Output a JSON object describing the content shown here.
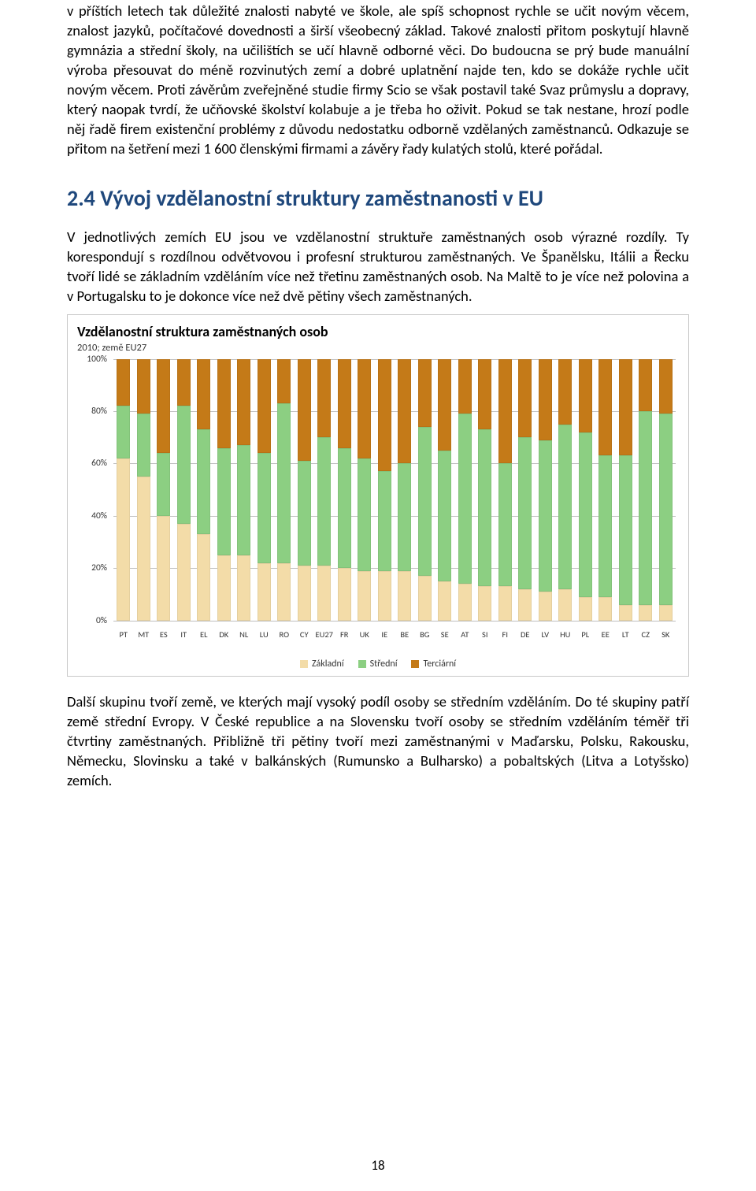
{
  "paragraphs": {
    "p1": "v příštích letech tak důležité znalosti nabyté ve škole, ale spíš schopnost rychle se učit novým věcem, znalost jazyků, počítačové dovednosti a širší všeobecný základ. Takové znalosti přitom poskytují hlavně gymnázia a střední školy, na učilištích se učí hlavně odborné věci. Do budoucna se prý bude manuální výroba přesouvat do méně rozvinutých zemí a dobré uplatnění najde ten, kdo se dokáže rychle učit novým věcem. Proti závěrům zveřejněné studie firmy Scio se však postavil také Svaz průmyslu a dopravy, který naopak tvrdí, že učňovské školství kolabuje a je třeba ho oživit. Pokud se tak nestane, hrozí podle něj řadě firem existenční problémy z důvodu nedostatku odborně vzdělaných zaměstnanců. Odkazuje se přitom na šetření mezi 1 600 členskými firmami a závěry řady kulatých stolů, které pořádal.",
    "p2": "V jednotlivých zemích EU jsou ve vzdělanostní struktuře zaměstnaných osob výrazné rozdíly. Ty korespondují s rozdílnou odvětvovou i profesní strukturou zaměstnaných. Ve Španělsku, Itálii a Řecku tvoří lidé se základním vzděláním více než třetinu zaměstnaných osob. Na Maltě to je více než polovina a v Portugalsku to je dokonce více než dvě pětiny všech zaměstnaných.",
    "p3": "Další skupinu tvoří země, ve kterých mají vysoký podíl osoby se středním vzděláním. Do té skupiny patří země střední Evropy. V České republice a na Slovensku tvoří osoby se středním vzděláním téměř tři čtvrtiny zaměstnaných. Přibližně tři pětiny tvoří mezi zaměstnanými v Maďarsku, Polsku, Rakousku, Německu, Slovinsku a také v balkánských (Rumunsko a Bulharsko) a pobaltských (Litva a Lotyšsko) zemích."
  },
  "heading": "2.4 Vývoj vzdělanostní struktury zaměstnanosti v EU",
  "page_number": "18",
  "chart": {
    "title": "Vzdělanostní struktura zaměstnaných osob",
    "subtitle": "2010; země EU27",
    "type": "stacked-bar",
    "ylim": [
      0,
      100
    ],
    "ytick_step": 20,
    "y_tick_labels": [
      "0%",
      "20%",
      "40%",
      "60%",
      "80%",
      "100%"
    ],
    "grid_color": "#bfbfbf",
    "background_color": "#ffffff",
    "series_colors": {
      "zakladni": "#f3dca8",
      "stredni": "#8ccf82",
      "terciarni": "#c47a18"
    },
    "legend": [
      {
        "key": "zakladni",
        "label": "Základní"
      },
      {
        "key": "stredni",
        "label": "Střední"
      },
      {
        "key": "terciarni",
        "label": "Terciární"
      }
    ],
    "categories": [
      "PT",
      "MT",
      "ES",
      "IT",
      "EL",
      "DK",
      "NL",
      "LU",
      "RO",
      "CY",
      "EU27",
      "FR",
      "UK",
      "IE",
      "BE",
      "BG",
      "SE",
      "AT",
      "SI",
      "FI",
      "DE",
      "LV",
      "HU",
      "PL",
      "EE",
      "LT",
      "CZ",
      "SK"
    ],
    "data": [
      {
        "zakladni": 62,
        "stredni": 20,
        "terciarni": 18
      },
      {
        "zakladni": 55,
        "stredni": 24,
        "terciarni": 21
      },
      {
        "zakladni": 40,
        "stredni": 24,
        "terciarni": 36
      },
      {
        "zakladni": 37,
        "stredni": 45,
        "terciarni": 18
      },
      {
        "zakladni": 33,
        "stredni": 40,
        "terciarni": 27
      },
      {
        "zakladni": 25,
        "stredni": 41,
        "terciarni": 34
      },
      {
        "zakladni": 25,
        "stredni": 42,
        "terciarni": 33
      },
      {
        "zakladni": 22,
        "stredni": 42,
        "terciarni": 36
      },
      {
        "zakladni": 22,
        "stredni": 61,
        "terciarni": 17
      },
      {
        "zakladni": 21,
        "stredni": 40,
        "terciarni": 39
      },
      {
        "zakladni": 21,
        "stredni": 49,
        "terciarni": 30
      },
      {
        "zakladni": 20,
        "stredni": 46,
        "terciarni": 34
      },
      {
        "zakladni": 19,
        "stredni": 43,
        "terciarni": 38
      },
      {
        "zakladni": 19,
        "stredni": 38,
        "terciarni": 43
      },
      {
        "zakladni": 19,
        "stredni": 41,
        "terciarni": 40
      },
      {
        "zakladni": 17,
        "stredni": 57,
        "terciarni": 26
      },
      {
        "zakladni": 15,
        "stredni": 50,
        "terciarni": 35
      },
      {
        "zakladni": 14,
        "stredni": 65,
        "terciarni": 21
      },
      {
        "zakladni": 13,
        "stredni": 60,
        "terciarni": 27
      },
      {
        "zakladni": 13,
        "stredni": 47,
        "terciarni": 40
      },
      {
        "zakladni": 12,
        "stredni": 58,
        "terciarni": 30
      },
      {
        "zakladni": 11,
        "stredni": 58,
        "terciarni": 31
      },
      {
        "zakladni": 12,
        "stredni": 63,
        "terciarni": 25
      },
      {
        "zakladni": 9,
        "stredni": 63,
        "terciarni": 28
      },
      {
        "zakladni": 9,
        "stredni": 54,
        "terciarni": 37
      },
      {
        "zakladni": 6,
        "stredni": 57,
        "terciarni": 37
      },
      {
        "zakladni": 6,
        "stredni": 74,
        "terciarni": 20
      },
      {
        "zakladni": 6,
        "stredni": 73,
        "terciarni": 21
      }
    ]
  }
}
